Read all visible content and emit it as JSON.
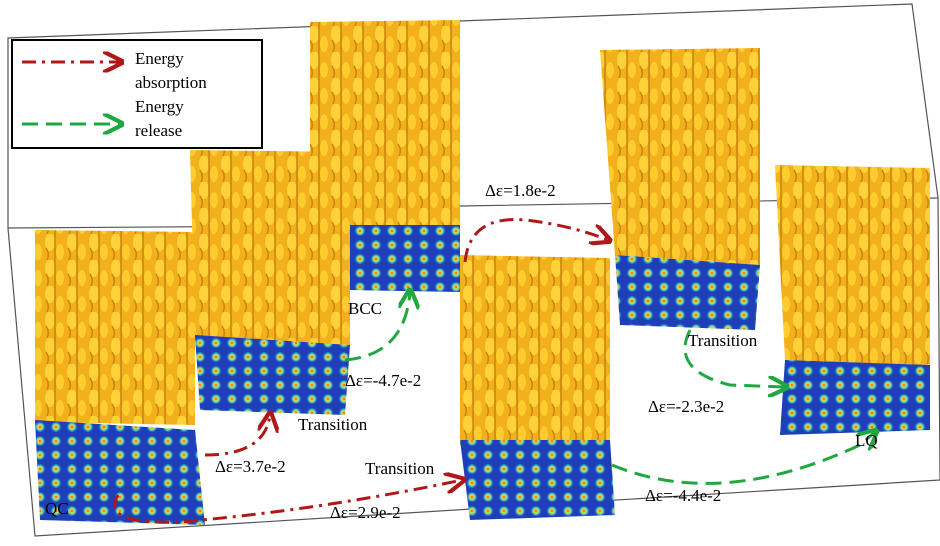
{
  "legend": {
    "items": [
      {
        "label_lines": [
          "Energy",
          "absorption"
        ]
      },
      {
        "label_lines": [
          "Energy",
          "release"
        ]
      }
    ]
  },
  "structures": [
    {
      "label": "QC"
    },
    {
      "label": "Transition"
    },
    {
      "label": "BCC"
    },
    {
      "label": "Transition"
    },
    {
      "label": "Transition"
    },
    {
      "label": "LQ"
    }
  ],
  "transitions": [
    {
      "label": "Δε=3.7e-2"
    },
    {
      "label": "Δε=2.9e-2"
    },
    {
      "label": "Δε=-4.7e-2"
    },
    {
      "label": "Δε=1.8e-2"
    },
    {
      "label": "Δε=-4.4e-2"
    },
    {
      "label": "Δε=-2.3e-2"
    }
  ]
}
